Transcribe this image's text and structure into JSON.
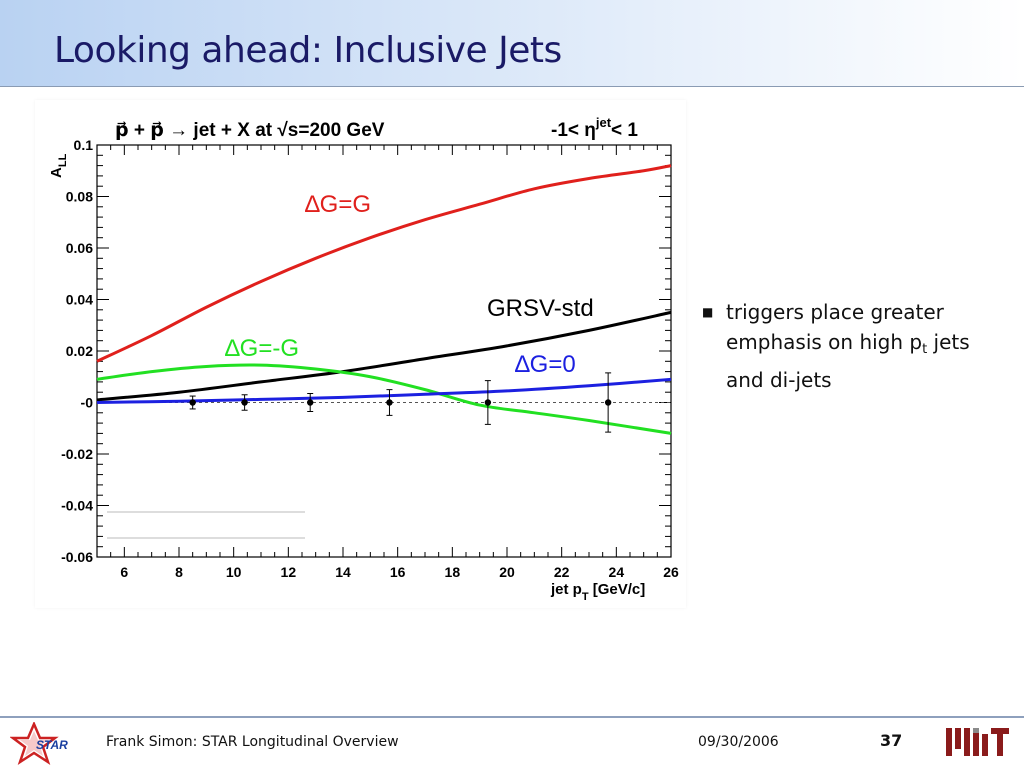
{
  "slide": {
    "title": "Looking ahead: Inclusive Jets",
    "bullet": "triggers place greater emphasis on high p",
    "bullet_sub": "t",
    "bullet_tail": " jets and di-jets"
  },
  "footer": {
    "author": "Frank Simon: STAR Longitudinal Overview",
    "date": "09/30/2006",
    "page": "37",
    "left_logo_text": "STAR",
    "right_logo": "MIT"
  },
  "chart_data": {
    "type": "line",
    "title_left": "p⃗ + p⃗ → jet + X at √s=200 GeV",
    "title_right": "-1< η",
    "title_right_sup": "jet",
    "title_right_tail": "< 1",
    "xlabel": "jet p",
    "xlabel_sub": "T",
    "xlabel_tail": " [GeV/c]",
    "ylabel": "A",
    "ylabel_sub": "LL",
    "xlim": [
      5,
      26
    ],
    "ylim": [
      -0.06,
      0.1
    ],
    "x_ticks": [
      "6",
      "8",
      "10",
      "12",
      "14",
      "16",
      "18",
      "20",
      "22",
      "24",
      "26"
    ],
    "y_ticks": [
      "-0.06",
      "-0.04",
      "-0.02",
      "-0",
      "0.02",
      "0.04",
      "0.06",
      "0.08",
      "0.1"
    ],
    "series": [
      {
        "name": "∆G=G",
        "color": "#e0201c",
        "x": [
          5,
          7,
          9,
          11,
          13,
          15,
          17,
          19,
          21,
          23,
          25,
          26
        ],
        "y": [
          0.016,
          0.026,
          0.037,
          0.047,
          0.056,
          0.064,
          0.071,
          0.077,
          0.083,
          0.087,
          0.09,
          0.092
        ]
      },
      {
        "name": "GRSV-std",
        "color": "#000000",
        "x": [
          5,
          8,
          11,
          14,
          17,
          20,
          23,
          26
        ],
        "y": [
          0.001,
          0.004,
          0.008,
          0.012,
          0.017,
          0.022,
          0.028,
          0.035
        ]
      },
      {
        "name": "∆G=-G",
        "color": "#22e022",
        "x": [
          5,
          7,
          9,
          11,
          13,
          15,
          17,
          19,
          21,
          23,
          26
        ],
        "y": [
          0.009,
          0.012,
          0.014,
          0.0145,
          0.013,
          0.01,
          0.005,
          -0.001,
          -0.004,
          -0.007,
          -0.012
        ]
      },
      {
        "name": "∆G=0",
        "color": "#1c20e0",
        "x": [
          5,
          8,
          11,
          14,
          17,
          20,
          23,
          26
        ],
        "y": [
          0.0,
          0.0005,
          0.0012,
          0.002,
          0.0032,
          0.0045,
          0.0065,
          0.009
        ]
      }
    ],
    "points": [
      {
        "x": 8.5,
        "y": 0.0,
        "err": 0.0025
      },
      {
        "x": 10.4,
        "y": 0.0,
        "err": 0.003
      },
      {
        "x": 12.8,
        "y": 0.0,
        "err": 0.0035
      },
      {
        "x": 15.7,
        "y": 0.0,
        "err": 0.005
      },
      {
        "x": 19.3,
        "y": 0.0,
        "err": 0.0085
      },
      {
        "x": 23.7,
        "y": 0.0,
        "err": 0.0115
      }
    ],
    "zero_line": "dashed"
  }
}
